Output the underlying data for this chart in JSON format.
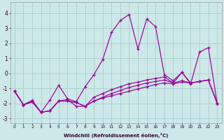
{
  "xlabel": "Windchill (Refroidissement éolien,°C)",
  "background_color": "#cde8e8",
  "grid_color": "#aacccc",
  "line_color": "#990099",
  "xlim": [
    -0.5,
    23.5
  ],
  "ylim": [
    -3.3,
    4.7
  ],
  "yticks": [
    -3,
    -2,
    -1,
    0,
    1,
    2,
    3,
    4
  ],
  "xticks": [
    0,
    1,
    2,
    3,
    4,
    5,
    6,
    7,
    8,
    9,
    10,
    11,
    12,
    13,
    14,
    15,
    16,
    17,
    18,
    19,
    20,
    21,
    22,
    23
  ],
  "series": [
    [
      0,
      -1.2
    ],
    [
      1,
      -2.1
    ],
    [
      2,
      -1.8
    ],
    [
      3,
      -2.6
    ],
    [
      4,
      -1.8
    ],
    [
      5,
      -0.8
    ],
    [
      6,
      -1.7
    ],
    [
      7,
      -1.9
    ],
    [
      8,
      -0.9
    ],
    [
      9,
      -0.1
    ],
    [
      10,
      0.9
    ],
    [
      11,
      2.7
    ],
    [
      12,
      3.5
    ],
    [
      13,
      3.9
    ],
    [
      14,
      1.6
    ],
    [
      15,
      3.6
    ],
    [
      16,
      3.1
    ],
    [
      17,
      -0.1
    ],
    [
      18,
      -0.5
    ],
    [
      19,
      0.05
    ],
    [
      20,
      -0.7
    ],
    [
      21,
      1.4
    ],
    [
      22,
      1.7
    ],
    [
      23,
      -2.0
    ]
  ],
  "series2": [
    [
      0,
      -1.2
    ],
    [
      1,
      -2.1
    ],
    [
      2,
      -1.9
    ],
    [
      3,
      -2.6
    ],
    [
      4,
      -2.5
    ],
    [
      5,
      -1.85
    ],
    [
      6,
      -1.75
    ],
    [
      7,
      -2.2
    ],
    [
      8,
      -2.2
    ],
    [
      9,
      -1.6
    ],
    [
      10,
      -1.35
    ],
    [
      11,
      -1.1
    ],
    [
      12,
      -0.9
    ],
    [
      13,
      -0.7
    ],
    [
      14,
      -0.6
    ],
    [
      15,
      -0.45
    ],
    [
      16,
      -0.35
    ],
    [
      17,
      -0.25
    ],
    [
      18,
      -0.65
    ],
    [
      19,
      0.05
    ],
    [
      20,
      -0.65
    ],
    [
      21,
      -0.55
    ],
    [
      22,
      -0.45
    ],
    [
      23,
      -2.0
    ]
  ],
  "series3": [
    [
      0,
      -1.2
    ],
    [
      1,
      -2.1
    ],
    [
      2,
      -1.9
    ],
    [
      3,
      -2.6
    ],
    [
      4,
      -2.5
    ],
    [
      5,
      -1.85
    ],
    [
      6,
      -1.85
    ],
    [
      7,
      -1.95
    ],
    [
      8,
      -2.2
    ],
    [
      9,
      -1.85
    ],
    [
      10,
      -1.6
    ],
    [
      11,
      -1.35
    ],
    [
      12,
      -1.15
    ],
    [
      13,
      -0.95
    ],
    [
      14,
      -0.8
    ],
    [
      15,
      -0.65
    ],
    [
      16,
      -0.55
    ],
    [
      17,
      -0.45
    ],
    [
      18,
      -0.65
    ],
    [
      19,
      -0.5
    ],
    [
      20,
      -0.65
    ],
    [
      21,
      -0.55
    ],
    [
      22,
      -0.45
    ],
    [
      23,
      -2.0
    ]
  ],
  "series4": [
    [
      0,
      -1.2
    ],
    [
      1,
      -2.1
    ],
    [
      2,
      -1.9
    ],
    [
      3,
      -2.6
    ],
    [
      4,
      -2.5
    ],
    [
      5,
      -1.85
    ],
    [
      6,
      -1.85
    ],
    [
      7,
      -1.95
    ],
    [
      8,
      -2.2
    ],
    [
      9,
      -1.85
    ],
    [
      10,
      -1.65
    ],
    [
      11,
      -1.5
    ],
    [
      12,
      -1.35
    ],
    [
      13,
      -1.2
    ],
    [
      14,
      -1.05
    ],
    [
      15,
      -0.9
    ],
    [
      16,
      -0.75
    ],
    [
      17,
      -0.65
    ],
    [
      18,
      -0.7
    ],
    [
      19,
      -0.6
    ],
    [
      20,
      -0.65
    ],
    [
      21,
      -0.55
    ],
    [
      22,
      -0.45
    ],
    [
      23,
      -2.0
    ]
  ]
}
